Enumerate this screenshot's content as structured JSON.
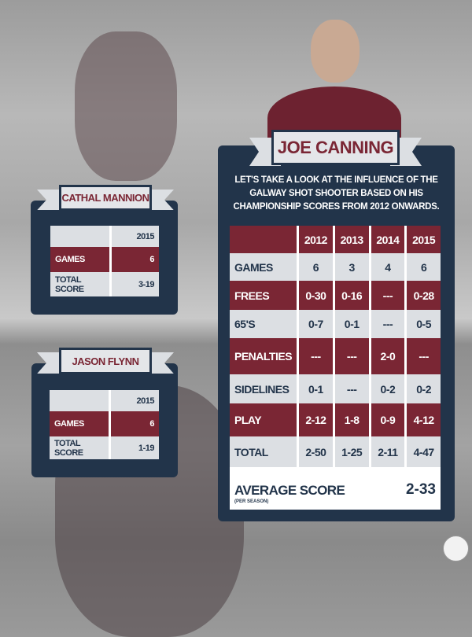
{
  "main": {
    "name": "JOE CANNING",
    "description": "LET'S TAKE A LOOK AT THE INFLUENCE OF THE GALWAY SHOT SHOOTER BASED ON HIS CHAMPIONSHIP SCORES FROM 2012 ONWARDS.",
    "columns": [
      "",
      "2012",
      "2013",
      "2014",
      "2015"
    ],
    "rows": [
      {
        "label": "GAMES",
        "values": [
          "6",
          "3",
          "4",
          "6"
        ]
      },
      {
        "label": "FREES",
        "values": [
          "0-30",
          "0-16",
          "---",
          "0-28"
        ]
      },
      {
        "label": "65'S",
        "values": [
          "0-7",
          "0-1",
          "---",
          "0-5"
        ]
      },
      {
        "label": "PENALTIES",
        "values": [
          "---",
          "---",
          "2-0",
          "---"
        ]
      },
      {
        "label": "SIDELINES",
        "values": [
          "0-1",
          "---",
          "0-2",
          "0-2"
        ]
      },
      {
        "label": "PLAY",
        "values": [
          "2-12",
          "1-8",
          "0-9",
          "4-12"
        ]
      },
      {
        "label": "TOTAL",
        "values": [
          "2-50",
          "1-25",
          "2-11",
          "4-47"
        ]
      }
    ],
    "average": {
      "label": "AVERAGE SCORE",
      "sub": "(PER SEASON)",
      "value": "2-33"
    }
  },
  "players": [
    {
      "name": "CATHAL MANNION",
      "year": "2015",
      "rows": [
        {
          "label": "GAMES",
          "value": "6"
        },
        {
          "label": "TOTAL SCORE",
          "value": "3-19"
        }
      ]
    },
    {
      "name": "JASON FLYNN",
      "year": "2015",
      "rows": [
        {
          "label": "GAMES",
          "value": "6"
        },
        {
          "label": "TOTAL SCORE",
          "value": "1-19"
        }
      ]
    }
  ],
  "colors": {
    "navy": "#22344a",
    "maroon": "#7a2634",
    "light": "#dcdfe3"
  }
}
